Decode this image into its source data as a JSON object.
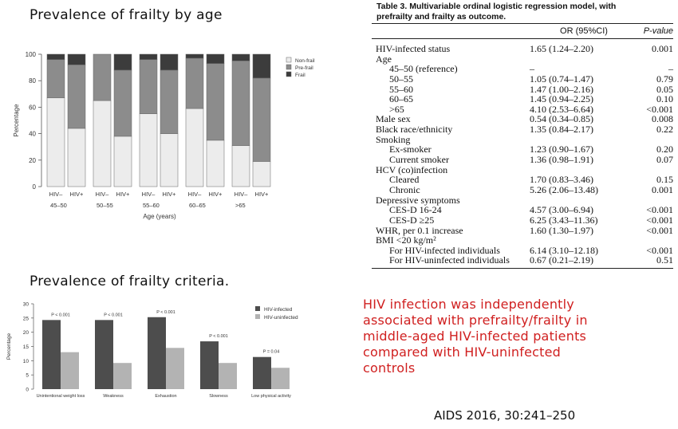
{
  "headings": {
    "age_chart": "Prevalence of frailty by age",
    "criteria_chart": "Prevalence of frailty criteria."
  },
  "table": {
    "title_line1": "Table 3. Multivariable ordinal logistic regression model, with",
    "title_line2": "prefrailty and frailty as outcome.",
    "col_or": "OR (95%CI)",
    "col_p": "P-value",
    "rows": [
      {
        "label": "HIV-infected status",
        "or": "1.65 (1.24–2.20)",
        "p": "0.001",
        "indent": false
      },
      {
        "label": "Age",
        "or": "",
        "p": "",
        "indent": false
      },
      {
        "label": "45–50 (reference)",
        "or": "–",
        "p": "–",
        "indent": true
      },
      {
        "label": "50–55",
        "or": "1.05 (0.74–1.47)",
        "p": "0.79",
        "indent": true
      },
      {
        "label": "55–60",
        "or": "1.47 (1.00–2.16)",
        "p": "0.05",
        "indent": true
      },
      {
        "label": "60–65",
        "or": "1.45 (0.94–2.25)",
        "p": "0.10",
        "indent": true
      },
      {
        "label": ">65",
        "or": "4.10 (2.53–6.64)",
        "p": "<0.001",
        "indent": true
      },
      {
        "label": "Male sex",
        "or": "0.54 (0.34–0.85)",
        "p": "0.008",
        "indent": false
      },
      {
        "label": "Black race/ethnicity",
        "or": "1.35 (0.84–2.17)",
        "p": "0.22",
        "indent": false
      },
      {
        "label": "Smoking",
        "or": "",
        "p": "",
        "indent": false
      },
      {
        "label": "Ex-smoker",
        "or": "1.23 (0.90–1.67)",
        "p": "0.20",
        "indent": true
      },
      {
        "label": "Current smoker",
        "or": "1.36 (0.98–1.91)",
        "p": "0.07",
        "indent": true
      },
      {
        "label": "HCV (co)infection",
        "or": "",
        "p": "",
        "indent": false
      },
      {
        "label": "Cleared",
        "or": "1.70 (0.83–3.46)",
        "p": "0.15",
        "indent": true
      },
      {
        "label": "Chronic",
        "or": "5.26 (2.06–13.48)",
        "p": "0.001",
        "indent": true
      },
      {
        "label": "Depressive symptoms",
        "or": "",
        "p": "",
        "indent": false
      },
      {
        "label": "CES-D 16-24",
        "or": "4.57 (3.00–6.94)",
        "p": "<0.001",
        "indent": true
      },
      {
        "label": "CES-D ≥25",
        "or": "6.25 (3.43–11.36)",
        "p": "<0.001",
        "indent": true
      },
      {
        "label": "WHR, per 0.1 increase",
        "or": "1.60 (1.30–1.97)",
        "p": "<0.001",
        "indent": false
      },
      {
        "label": "BMI <20 kg/m²",
        "or": "",
        "p": "",
        "indent": false
      },
      {
        "label": "For HIV-infected individuals",
        "or": "6.14 (3.10–12.18)",
        "p": "<0.001",
        "indent": true
      },
      {
        "label": "For HIV-uninfected individuals",
        "or": "0.67 (0.21–2.19)",
        "p": "0.51",
        "indent": true
      }
    ]
  },
  "conclusion": {
    "lines": [
      "HIV infection was independently",
      "associated with prefrailty/frailty in",
      "middle-aged HIV-infected patients",
      "compared with HIV-uninfected",
      "controls"
    ]
  },
  "citation": "AIDS 2016, 30:241–250",
  "chart_data": [
    {
      "type": "bar",
      "stacked": true,
      "ylabel": "Percentage",
      "xlabel": "Age (years)",
      "ylim": [
        0,
        100
      ],
      "yticks": [
        0,
        20,
        40,
        60,
        80,
        100
      ],
      "groups": [
        "45–50",
        "50–55",
        "55–60",
        "60–65",
        ">65"
      ],
      "bar_labels": [
        "HIV–",
        "HIV+"
      ],
      "legend": [
        "Non-frail",
        "Pre-frail",
        "Frail"
      ],
      "legend_position": "right",
      "colors": {
        "non_frail": "#ececec",
        "pre_frail": "#8c8c8c",
        "frail": "#3c3c3c"
      },
      "bars": [
        {
          "group": "45–50",
          "hiv": "HIV–",
          "non_frail": 67,
          "pre_frail": 29,
          "frail": 4
        },
        {
          "group": "45–50",
          "hiv": "HIV+",
          "non_frail": 44,
          "pre_frail": 48,
          "frail": 8
        },
        {
          "group": "50–55",
          "hiv": "HIV–",
          "non_frail": 65,
          "pre_frail": 35,
          "frail": 0
        },
        {
          "group": "50–55",
          "hiv": "HIV+",
          "non_frail": 38,
          "pre_frail": 50,
          "frail": 12
        },
        {
          "group": "55–60",
          "hiv": "HIV–",
          "non_frail": 55,
          "pre_frail": 41,
          "frail": 4
        },
        {
          "group": "55–60",
          "hiv": "HIV+",
          "non_frail": 40,
          "pre_frail": 48,
          "frail": 12
        },
        {
          "group": "60–65",
          "hiv": "HIV–",
          "non_frail": 59,
          "pre_frail": 38,
          "frail": 3
        },
        {
          "group": "60–65",
          "hiv": "HIV+",
          "non_frail": 35,
          "pre_frail": 58,
          "frail": 7
        },
        {
          "group": ">65",
          "hiv": "HIV–",
          "non_frail": 31,
          "pre_frail": 64,
          "frail": 5
        },
        {
          "group": ">65",
          "hiv": "HIV+",
          "non_frail": 19,
          "pre_frail": 63,
          "frail": 18
        }
      ]
    },
    {
      "type": "bar",
      "ylabel": "Percentage",
      "xlabel": "",
      "ylim": [
        0,
        30
      ],
      "yticks": [
        0,
        5,
        10,
        15,
        20,
        25,
        30
      ],
      "categories": [
        "Unintentional weight loss",
        "Weakness",
        "Exhaustion",
        "Slowness",
        "Low physical activity"
      ],
      "p_values": [
        "P < 0.001",
        "P < 0.001",
        "P < 0.001",
        "P < 0.001",
        "P = 0.04"
      ],
      "legend_position": "right",
      "series": [
        {
          "name": "HIV-infected",
          "color": "#4d4d4d",
          "values": [
            24.3,
            24.3,
            25.3,
            16.8,
            11.3
          ]
        },
        {
          "name": "HIV-uninfected",
          "color": "#b3b3b3",
          "values": [
            13.0,
            9.2,
            14.5,
            9.2,
            7.5
          ]
        }
      ]
    }
  ]
}
